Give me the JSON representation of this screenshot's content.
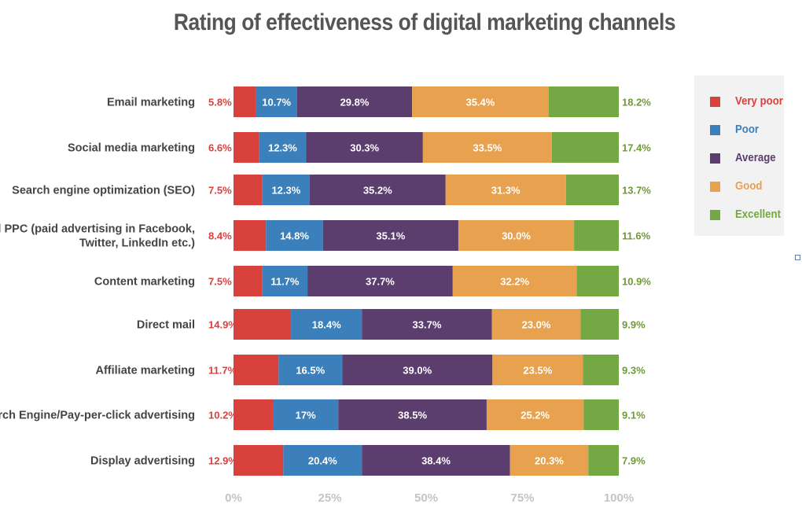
{
  "chart_data": {
    "type": "bar",
    "orientation": "horizontal",
    "stacked": "percent",
    "title": "Rating of effectiveness of digital marketing channels",
    "categories": [
      "Email marketing",
      "Social media marketing",
      "Search engine optimization (SEO)",
      "Social PPC (paid advertising in Facebook, Twitter, LinkedIn etc.)",
      "Content marketing",
      "Direct mail",
      "Affiliate marketing",
      "Search Engine/Pay-per-click advertising",
      "Display advertising"
    ],
    "series": [
      {
        "name": "Very poor",
        "color": "#d9413d",
        "values": [
          5.8,
          6.6,
          7.5,
          8.4,
          7.5,
          14.9,
          11.7,
          10.2,
          12.9
        ],
        "labels": [
          "5.8%",
          "6.6%",
          "7.5%",
          "8.4%",
          "7.5%",
          "14.9%",
          "11.7%",
          "10.2%",
          "12.9%"
        ]
      },
      {
        "name": "Poor",
        "color": "#3b7fbb",
        "values": [
          10.7,
          12.3,
          12.3,
          14.8,
          11.7,
          18.4,
          16.5,
          17,
          20.4
        ],
        "labels": [
          "10.7%",
          "12.3%",
          "12.3%",
          "14.8%",
          "11.7%",
          "18.4%",
          "16.5%",
          "17%",
          "20.4%"
        ]
      },
      {
        "name": "Average",
        "color": "#5b3d6e",
        "values": [
          29.8,
          30.3,
          35.2,
          35.1,
          37.7,
          33.7,
          39.0,
          38.5,
          38.4
        ],
        "labels": [
          "29.8%",
          "30.3%",
          "35.2%",
          "35.1%",
          "37.7%",
          "33.7%",
          "39.0%",
          "38.5%",
          "38.4%"
        ]
      },
      {
        "name": "Good",
        "color": "#e8a24f",
        "values": [
          35.4,
          33.5,
          31.3,
          30.0,
          32.2,
          23.0,
          23.5,
          25.2,
          20.3
        ],
        "labels": [
          "35.4%",
          "33.5%",
          "31.3%",
          "30.0%",
          "32.2%",
          "23.0%",
          "23.5%",
          "25.2%",
          "20.3%"
        ]
      },
      {
        "name": "Excellent",
        "color": "#74a844",
        "values": [
          18.2,
          17.4,
          13.7,
          11.6,
          10.9,
          9.9,
          9.3,
          9.1,
          7.9
        ],
        "labels": [
          "18.2%",
          "17.4%",
          "13.7%",
          "11.6%",
          "10.9%",
          "9.9%",
          "9.3%",
          "9.1%",
          "7.9%"
        ]
      }
    ],
    "xlim": [
      0,
      100
    ],
    "xticks": [
      "0%",
      "25%",
      "50%",
      "75%",
      "100%"
    ],
    "grid": false,
    "legend_position": "right"
  },
  "colors": {
    "title": "#555555",
    "very_poor_label": "#d9413d",
    "excellent_label": "#6e9a37",
    "tick": "#c4c4c4",
    "legend_bg": "#f2f2f2"
  }
}
